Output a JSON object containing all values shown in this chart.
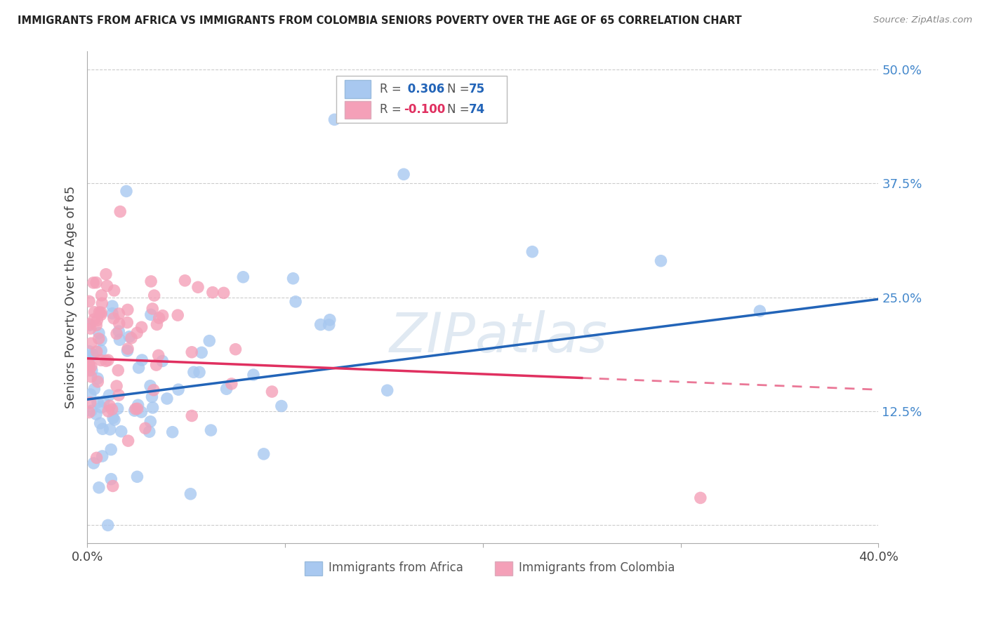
{
  "title": "IMMIGRANTS FROM AFRICA VS IMMIGRANTS FROM COLOMBIA SENIORS POVERTY OVER THE AGE OF 65 CORRELATION CHART",
  "source": "Source: ZipAtlas.com",
  "ylabel": "Seniors Poverty Over the Age of 65",
  "xlim": [
    0.0,
    0.4
  ],
  "ylim": [
    -0.02,
    0.52
  ],
  "yticks": [
    0.0,
    0.125,
    0.25,
    0.375,
    0.5
  ],
  "ytick_labels": [
    "",
    "12.5%",
    "25.0%",
    "37.5%",
    "50.0%"
  ],
  "xticks": [
    0.0,
    0.1,
    0.2,
    0.3,
    0.4
  ],
  "xtick_labels": [
    "0.0%",
    "",
    "",
    "",
    "40.0%"
  ],
  "africa_color": "#a8c8f0",
  "colombia_color": "#f4a0b8",
  "africa_line_color": "#2264b8",
  "colombia_line_color": "#e03060",
  "legend_africa_R": "0.306",
  "legend_africa_N": "75",
  "legend_colombia_R": "-0.100",
  "legend_colombia_N": "74",
  "watermark": "ZIPatlas",
  "background_color": "#ffffff",
  "africa_scatter_seed": 42,
  "colombia_scatter_seed": 99
}
